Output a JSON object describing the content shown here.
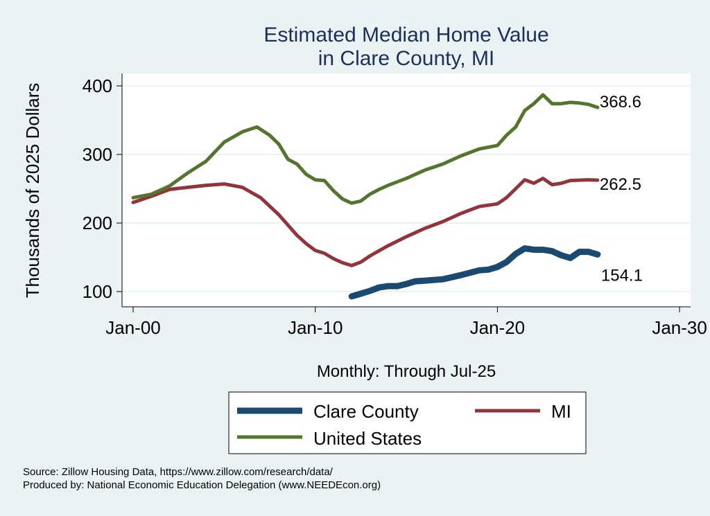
{
  "chart_data": {
    "type": "line",
    "title": [
      "Estimated Median Home Value",
      "in Clare County, MI"
    ],
    "xlabel": "Monthly: Through Jul-25",
    "ylabel": "Thousands of 2025 Dollars",
    "xlim": [
      2000,
      2030
    ],
    "ylim": [
      100,
      400
    ],
    "xticks": [
      {
        "v": 2000,
        "label": "Jan-00"
      },
      {
        "v": 2010,
        "label": "Jan-10"
      },
      {
        "v": 2020,
        "label": "Jan-20"
      },
      {
        "v": 2030,
        "label": "Jan-30"
      }
    ],
    "yticks": [
      100,
      200,
      300,
      400
    ],
    "grid": true,
    "legend_placement": "bottom",
    "series": [
      {
        "name": "Clare County",
        "color": "#1a4a72",
        "end_label": "154.1",
        "x": [
          2012,
          2012.5,
          2013,
          2013.5,
          2014,
          2014.5,
          2015,
          2015.5,
          2016,
          2017,
          2017.5,
          2018,
          2019,
          2019.5,
          2020,
          2020.5,
          2021,
          2021.5,
          2022,
          2022.5,
          2023,
          2023.5,
          2024,
          2024.5,
          2025,
          2025.5
        ],
        "y": [
          93,
          97,
          101,
          106,
          108,
          108,
          111,
          115,
          116,
          118,
          121,
          124,
          131,
          132,
          136,
          143,
          155,
          163,
          161,
          161,
          159,
          153,
          149,
          158,
          158,
          154.1
        ]
      },
      {
        "name": "MI",
        "color": "#90353b",
        "end_label": "262.5",
        "x": [
          2000,
          2001,
          2002,
          2003,
          2004,
          2005,
          2006,
          2007,
          2008,
          2009,
          2009.5,
          2010,
          2010.5,
          2011,
          2011.5,
          2012,
          2012.5,
          2013,
          2014,
          2015,
          2016,
          2017,
          2018,
          2019,
          2020,
          2020.5,
          2021,
          2021.5,
          2022,
          2022.5,
          2023,
          2023.5,
          2024,
          2025,
          2025.5
        ],
        "y": [
          230,
          239,
          249,
          252,
          255,
          257,
          252,
          237,
          212,
          182,
          170,
          160,
          156,
          148,
          142,
          138,
          143,
          152,
          167,
          180,
          192,
          202,
          214,
          224,
          228,
          237,
          250,
          263,
          258,
          265,
          256,
          258,
          262,
          263,
          262.5
        ]
      },
      {
        "name": "United States",
        "color": "#55752f",
        "end_label": "368.6",
        "x": [
          2000,
          2001,
          2002,
          2003,
          2004,
          2005,
          2006,
          2006.8,
          2007.5,
          2008,
          2008.5,
          2009,
          2009.5,
          2010,
          2010.5,
          2011,
          2011.5,
          2012,
          2012.5,
          2013,
          2013.5,
          2014,
          2015,
          2016,
          2017,
          2018,
          2019,
          2020,
          2020.5,
          2021,
          2021.5,
          2022,
          2022.5,
          2023,
          2023.5,
          2024,
          2024.5,
          2025,
          2025.5
        ],
        "y": [
          237,
          242,
          254,
          273,
          290,
          318,
          333,
          340,
          328,
          315,
          293,
          286,
          271,
          263,
          262,
          247,
          235,
          229,
          232,
          242,
          249,
          255,
          265,
          277,
          286,
          298,
          308,
          313,
          328,
          340,
          364,
          374,
          387,
          374,
          374,
          376,
          375,
          373,
          368.6
        ]
      }
    ]
  },
  "footer": {
    "source": "Source: Zillow Housing Data, https://www.zillow.com/research/data/",
    "produced": "Produced by: National Economic Education Delegation (www.NEEDEcon.org)"
  }
}
